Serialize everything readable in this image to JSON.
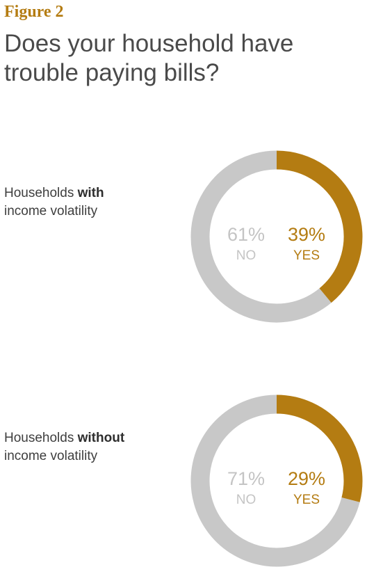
{
  "figure_label": "Figure 2",
  "title_line1": "Does your household have",
  "title_line2": "trouble paying bills?",
  "colors": {
    "yes": "#b47c12",
    "no": "#c8c8c8",
    "label_gray": "#c4c4c4"
  },
  "chart_data": [
    {
      "type": "pie",
      "title": "",
      "group_label_prefix": "Households ",
      "group_label_bold": "with",
      "group_label_suffix": "income volatility",
      "slices": [
        {
          "label": "NO",
          "value": 61,
          "display": "61%"
        },
        {
          "label": "YES",
          "value": 39,
          "display": "39%"
        }
      ]
    },
    {
      "type": "pie",
      "title": "",
      "group_label_prefix": "Households ",
      "group_label_bold": "without",
      "group_label_suffix": "income volatility",
      "slices": [
        {
          "label": "NO",
          "value": 71,
          "display": "71%"
        },
        {
          "label": "YES",
          "value": 29,
          "display": "29%"
        }
      ]
    }
  ]
}
